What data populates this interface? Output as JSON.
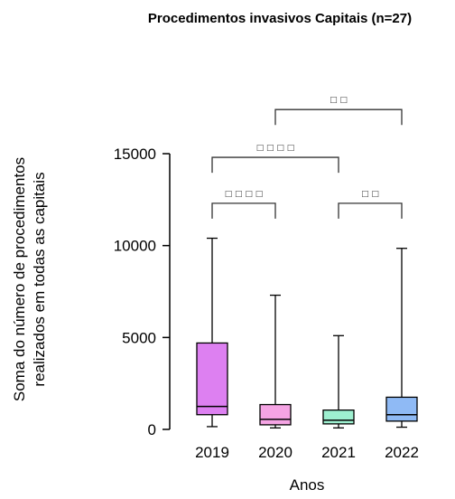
{
  "chart_data": {
    "type": "box",
    "title": "Procedimentos invasivos Capitais (n=27)",
    "xlabel": "Anos",
    "ylabel_lines": [
      "Soma do número de procedimentos",
      "realizados em todas as capitais"
    ],
    "ylim": [
      0,
      17000
    ],
    "yticks": [
      0,
      5000,
      10000,
      15000
    ],
    "categories": [
      "2019",
      "2020",
      "2021",
      "2022"
    ],
    "boxes": [
      {
        "category": "2019",
        "min": 150,
        "q1": 800,
        "median": 1250,
        "q3": 4700,
        "max": 10400,
        "color": "#dd80f1"
      },
      {
        "category": "2020",
        "min": 80,
        "q1": 250,
        "median": 550,
        "q3": 1350,
        "max": 7300,
        "color": "#f5a4e4"
      },
      {
        "category": "2021",
        "min": 80,
        "q1": 300,
        "median": 500,
        "q3": 1050,
        "max": 5100,
        "color": "#9ef0d0"
      },
      {
        "category": "2022",
        "min": 120,
        "q1": 450,
        "median": 800,
        "q3": 1750,
        "max": 9850,
        "color": "#8fbaf5"
      }
    ],
    "significance": [
      {
        "from": "2019",
        "to": "2020",
        "label": "□ □ □ □",
        "level": 12300
      },
      {
        "from": "2021",
        "to": "2022",
        "label": "□ □",
        "level": 12300
      },
      {
        "from": "2019",
        "to": "2021",
        "label": "□ □ □ □",
        "level": 14800
      },
      {
        "from": "2020",
        "to": "2022",
        "label": "□ □",
        "level": 17400
      }
    ]
  }
}
